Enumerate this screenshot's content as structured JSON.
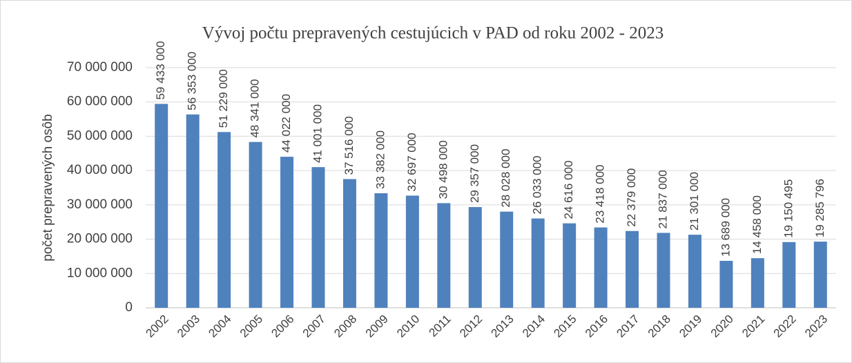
{
  "chart_data": {
    "type": "bar",
    "title": "Vývoj počtu prepravených cestujúcich v PAD od roku 2002 - 2023",
    "y_axis_label": "počet prepravených osôb",
    "categories": [
      "2002",
      "2003",
      "2004",
      "2005",
      "2006",
      "2007",
      "2008",
      "2009",
      "2010",
      "2011",
      "2012",
      "2013",
      "2014",
      "2015",
      "2016",
      "2017",
      "2018",
      "2019",
      "2020",
      "2021",
      "2022",
      "2023"
    ],
    "values": [
      59433000,
      56353000,
      51229000,
      48341000,
      44022000,
      41001000,
      37516000,
      33382000,
      32697000,
      30498000,
      29357000,
      28028000,
      26033000,
      24616000,
      23418000,
      22379000,
      21837000,
      21301000,
      13689000,
      14458000,
      19150495,
      19285796
    ],
    "value_labels": [
      "59 433 000",
      "56 353 000",
      "51 229 000",
      "48 341 000",
      "44 022 000",
      "41 001 000",
      "37 516 000",
      "33 382 000",
      "32 697 000",
      "30 498 000",
      "29 357 000",
      "28 028 000",
      "26 033 000",
      "24 616 000",
      "23 418 000",
      "22 379 000",
      "21 837 000",
      "21 301 000",
      "13 689 000",
      "14 458 000",
      "19 150 495",
      "19 285 796"
    ],
    "color": "#4f81bd",
    "ylim": [
      0,
      70000000
    ],
    "yticks": [
      0,
      {
        "value": 10000000,
        "label": "10 000 000"
      },
      {
        "value": 20000000,
        "label": "20 000 000"
      },
      {
        "value": 30000000,
        "label": "30 000 000"
      },
      {
        "value": 40000000,
        "label": "40 000 000"
      },
      {
        "value": 50000000,
        "label": "50 000 000"
      },
      {
        "value": 60000000,
        "label": "60 000 000"
      },
      {
        "value": 70000000,
        "label": "70 000 000"
      }
    ],
    "grid": true
  }
}
